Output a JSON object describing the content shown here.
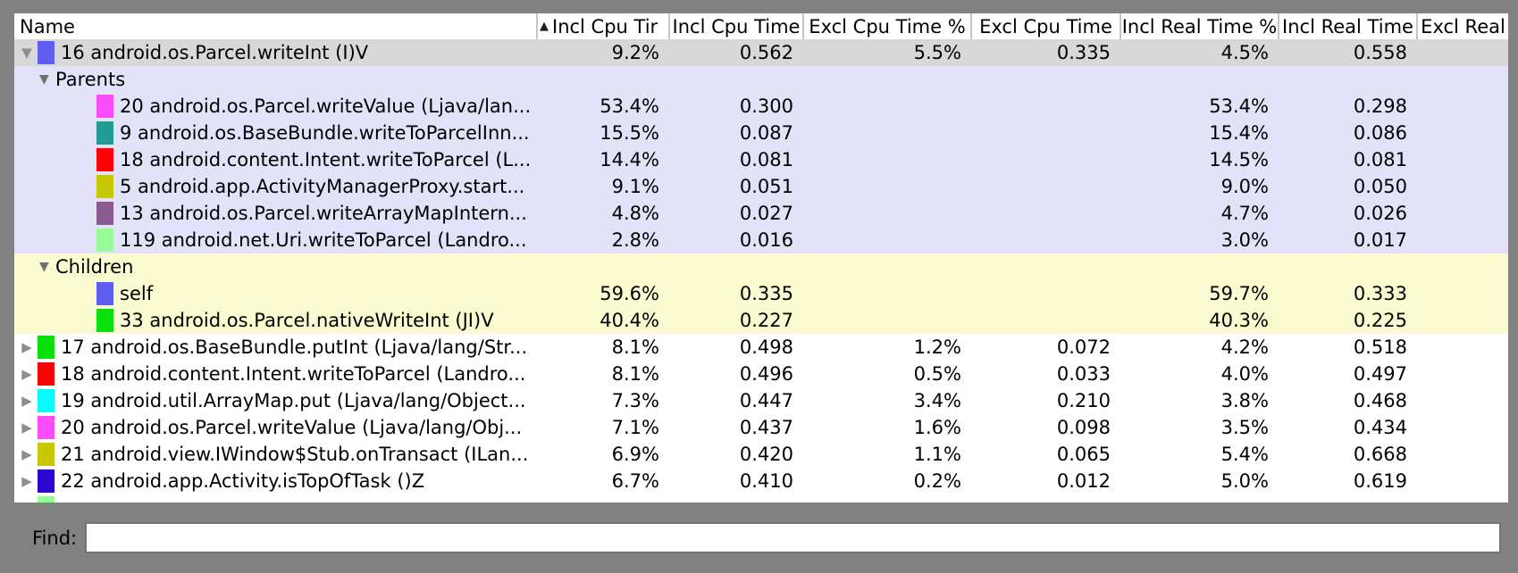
{
  "window": {
    "frame_color": "#818181"
  },
  "icons": {
    "sort_ascending": "▲",
    "expanded": "▼",
    "collapsed": "▶"
  },
  "find": {
    "label": "Find:",
    "value": "",
    "placeholder": ""
  },
  "table": {
    "columns": [
      {
        "key": "name",
        "label": "Name",
        "sorted": false
      },
      {
        "key": "incl_cpu_time_pct",
        "label": "Incl Cpu Tir",
        "sorted": true
      },
      {
        "key": "incl_cpu_time",
        "label": "Incl Cpu Time",
        "sorted": false
      },
      {
        "key": "excl_cpu_time_pct",
        "label": "Excl Cpu Time %",
        "sorted": false
      },
      {
        "key": "excl_cpu_time",
        "label": "Excl Cpu Time",
        "sorted": false
      },
      {
        "key": "incl_real_time_pct",
        "label": "Incl Real Time %",
        "sorted": false
      },
      {
        "key": "incl_real_time",
        "label": "Incl Real Time",
        "sorted": false
      },
      {
        "key": "excl_real_time",
        "label": "Excl Real",
        "sorted": false
      }
    ],
    "section_colors": {
      "selected_row_bg": "#d8d8d8",
      "parents_bg": "#e2e2f8",
      "children_bg": "#fbfbd2",
      "default_bg": "#ffffff"
    },
    "rows": [
      {
        "type": "root",
        "state": "expanded",
        "name": "16 android.os.Parcel.writeInt (I)V",
        "chip": "#5f5ff2",
        "bg": "#d8d8d8",
        "values": [
          "9.2%",
          "0.562",
          "5.5%",
          "0.335",
          "4.5%",
          "0.558",
          ""
        ]
      },
      {
        "type": "section",
        "state": "expanded",
        "name": "Parents",
        "chip": null,
        "bg": "#e2e2f8",
        "values": [
          "",
          "",
          "",
          "",
          "",
          "",
          ""
        ]
      },
      {
        "type": "child",
        "state": null,
        "name": "20 android.os.Parcel.writeValue (Ljava/lan...",
        "chip": "#fa4cfa",
        "bg": "#e2e2f8",
        "values": [
          "53.4%",
          "0.300",
          "",
          "",
          "53.4%",
          "0.298",
          ""
        ]
      },
      {
        "type": "child",
        "state": null,
        "name": "9 android.os.BaseBundle.writeToParcelInn...",
        "chip": "#229b94",
        "bg": "#e2e2f8",
        "values": [
          "15.5%",
          "0.087",
          "",
          "",
          "15.4%",
          "0.086",
          ""
        ]
      },
      {
        "type": "child",
        "state": null,
        "name": "18 android.content.Intent.writeToParcel (L...",
        "chip": "#fb0207",
        "bg": "#e2e2f8",
        "values": [
          "14.4%",
          "0.081",
          "",
          "",
          "14.5%",
          "0.081",
          ""
        ]
      },
      {
        "type": "child",
        "state": null,
        "name": "5 android.app.ActivityManagerProxy.start...",
        "chip": "#c7c803",
        "bg": "#e2e2f8",
        "values": [
          "9.1%",
          "0.051",
          "",
          "",
          "9.0%",
          "0.050",
          ""
        ]
      },
      {
        "type": "child",
        "state": null,
        "name": "13 android.os.Parcel.writeArrayMapIntern...",
        "chip": "#8c5a93",
        "bg": "#e2e2f8",
        "values": [
          "4.8%",
          "0.027",
          "",
          "",
          "4.7%",
          "0.026",
          ""
        ]
      },
      {
        "type": "child",
        "state": null,
        "name": "119 android.net.Uri.writeToParcel (Landro...",
        "chip": "#97fc97",
        "bg": "#e2e2f8",
        "values": [
          "2.8%",
          "0.016",
          "",
          "",
          "3.0%",
          "0.017",
          ""
        ]
      },
      {
        "type": "section",
        "state": "expanded",
        "name": "Children",
        "chip": null,
        "bg": "#fbfbd2",
        "values": [
          "",
          "",
          "",
          "",
          "",
          "",
          ""
        ]
      },
      {
        "type": "child",
        "state": null,
        "name": "self",
        "chip": "#5f5ff2",
        "bg": "#fbfbd2",
        "values": [
          "59.6%",
          "0.335",
          "",
          "",
          "59.7%",
          "0.333",
          ""
        ]
      },
      {
        "type": "child",
        "state": null,
        "name": "33 android.os.Parcel.nativeWriteInt (JI)V",
        "chip": "#0ce00c",
        "bg": "#fbfbd2",
        "values": [
          "40.4%",
          "0.227",
          "",
          "",
          "40.3%",
          "0.225",
          ""
        ]
      },
      {
        "type": "root",
        "state": "collapsed",
        "name": "17 android.os.BaseBundle.putInt (Ljava/lang/Str...",
        "chip": "#0ce00c",
        "bg": "#ffffff",
        "values": [
          "8.1%",
          "0.498",
          "1.2%",
          "0.072",
          "4.2%",
          "0.518",
          ""
        ]
      },
      {
        "type": "root",
        "state": "collapsed",
        "name": "18 android.content.Intent.writeToParcel (Landro...",
        "chip": "#fb0207",
        "bg": "#ffffff",
        "values": [
          "8.1%",
          "0.496",
          "0.5%",
          "0.033",
          "4.0%",
          "0.497",
          ""
        ]
      },
      {
        "type": "root",
        "state": "collapsed",
        "name": "19 android.util.ArrayMap.put (Ljava/lang/Object...",
        "chip": "#04feff",
        "bg": "#ffffff",
        "values": [
          "7.3%",
          "0.447",
          "3.4%",
          "0.210",
          "3.8%",
          "0.468",
          ""
        ]
      },
      {
        "type": "root",
        "state": "collapsed",
        "name": "20 android.os.Parcel.writeValue (Ljava/lang/Obj...",
        "chip": "#fa4cfa",
        "bg": "#ffffff",
        "values": [
          "7.1%",
          "0.437",
          "1.6%",
          "0.098",
          "3.5%",
          "0.434",
          ""
        ]
      },
      {
        "type": "root",
        "state": "collapsed",
        "name": "21 android.view.IWindow$Stub.onTransact (ILan...",
        "chip": "#c7c803",
        "bg": "#ffffff",
        "values": [
          "6.9%",
          "0.420",
          "1.1%",
          "0.065",
          "5.4%",
          "0.668",
          ""
        ]
      },
      {
        "type": "root",
        "state": "collapsed",
        "name": "22 android.app.Activity.isTopOfTask ()Z",
        "chip": "#2d07cf",
        "bg": "#ffffff",
        "values": [
          "6.7%",
          "0.410",
          "0.2%",
          "0.012",
          "5.0%",
          "0.619",
          ""
        ]
      },
      {
        "type": "partial",
        "state": null,
        "name": "",
        "chip": "#97fc97",
        "bg": "#ffffff",
        "values": [
          "",
          "",
          "",
          "",
          "",
          "",
          ""
        ]
      }
    ]
  }
}
